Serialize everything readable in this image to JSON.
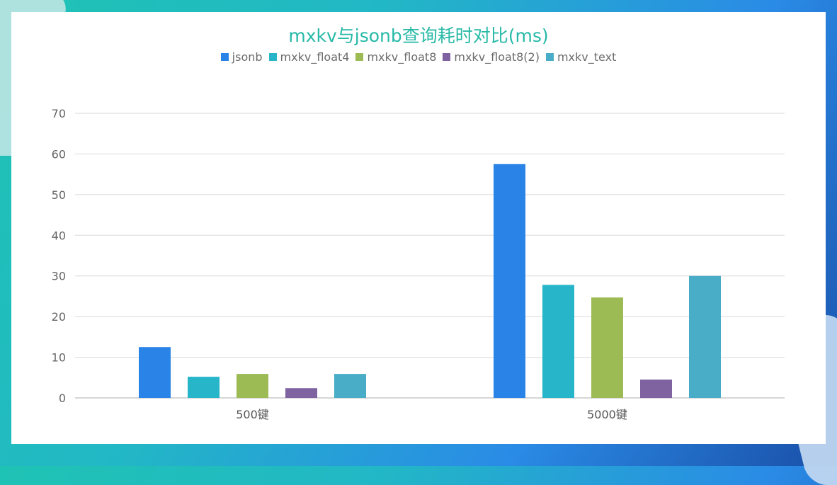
{
  "chart_data": {
    "type": "bar",
    "title": "mxkv与jsonb查询耗时对比(ms)",
    "categories": [
      "500键",
      "5000键"
    ],
    "series": [
      {
        "name": "jsonb",
        "color": "#2a83e7",
        "values": [
          12.5,
          57.5
        ]
      },
      {
        "name": "mxkv_float4",
        "color": "#27b5ca",
        "values": [
          5.2,
          27.8
        ]
      },
      {
        "name": "mxkv_float8",
        "color": "#9cbb54",
        "values": [
          5.9,
          24.7
        ]
      },
      {
        "name": "mxkv_float8(2)",
        "color": "#7f63a1",
        "values": [
          2.4,
          4.5
        ]
      },
      {
        "name": "mxkv_text",
        "color": "#4aadc7",
        "values": [
          5.9,
          30.0
        ]
      }
    ],
    "yticks": [
      "0",
      "10",
      "20",
      "30",
      "40",
      "50",
      "60",
      "70"
    ],
    "ylim": [
      0,
      70
    ],
    "grid": true,
    "legend_position": "top"
  }
}
